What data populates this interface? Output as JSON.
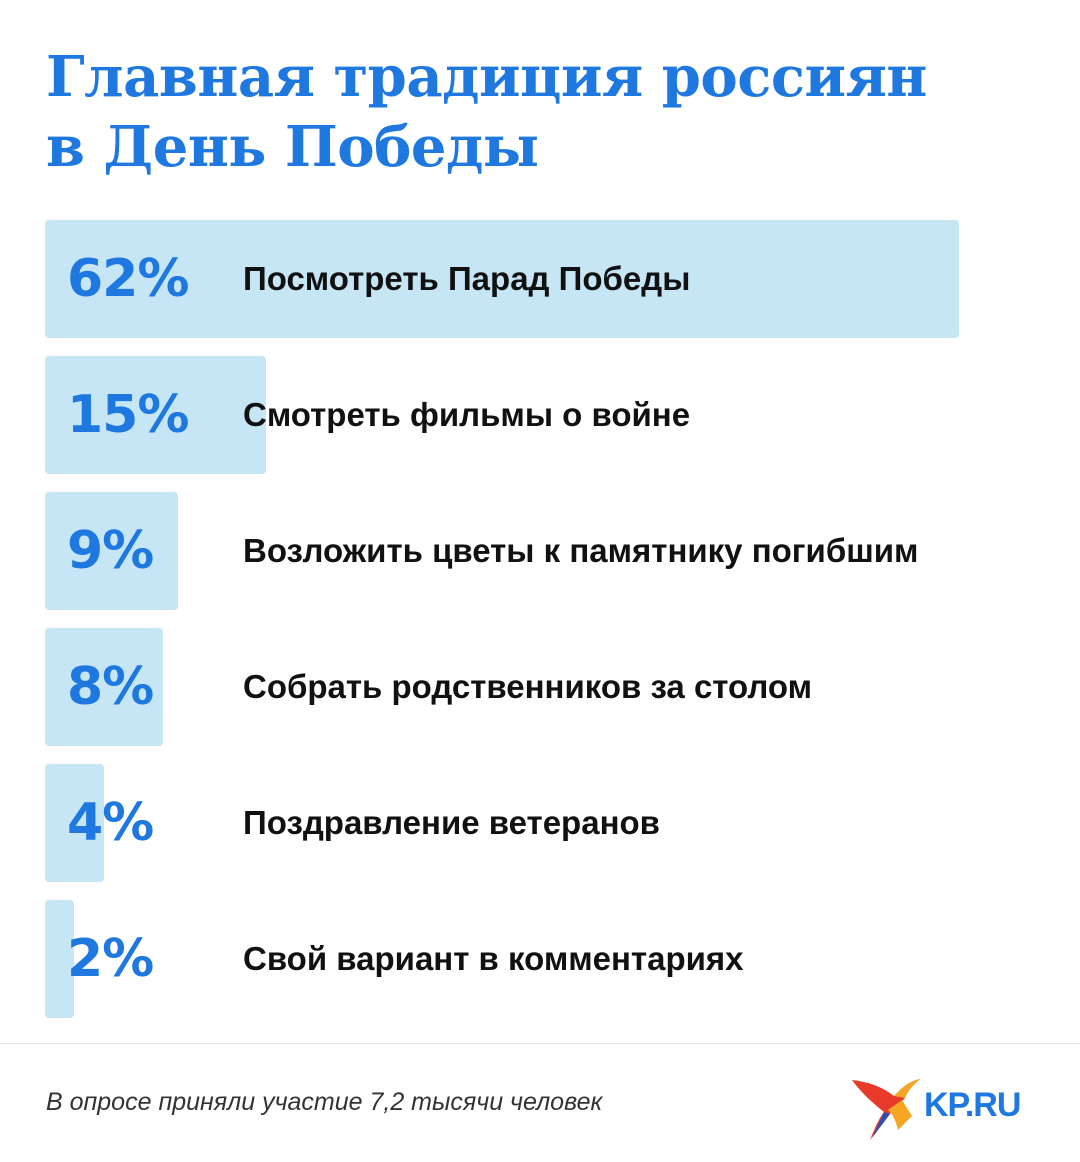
{
  "title": {
    "line1": "Главная традиция россиян",
    "line2": "в День Победы"
  },
  "chart_data": {
    "type": "bar",
    "orientation": "horizontal",
    "title": "Главная традиция россиян в День Победы",
    "categories": [
      "Посмотреть Парад Победы",
      "Смотреть фильмы о войне",
      "Возложить цветы к памятнику погибшим",
      "Собрать родственников за столом",
      "Поздравление ветеранов",
      "Свой вариант в комментариях"
    ],
    "values": [
      62,
      15,
      9,
      8,
      4,
      2
    ],
    "value_labels": [
      "62%",
      "15%",
      "9%",
      "8%",
      "4%",
      "2%"
    ],
    "unit": "%",
    "xlim": [
      0,
      62
    ],
    "grid": false,
    "legend": "none"
  },
  "footnote": "В опросе приняли участие 7,2 тысячи человек",
  "logo": {
    "text": "KP.RU"
  },
  "colors": {
    "accent": "#1e78e0",
    "bar": "#c6e6f6",
    "text": "#111111",
    "logo_red": "#e8392b",
    "logo_orange": "#f5a623"
  }
}
